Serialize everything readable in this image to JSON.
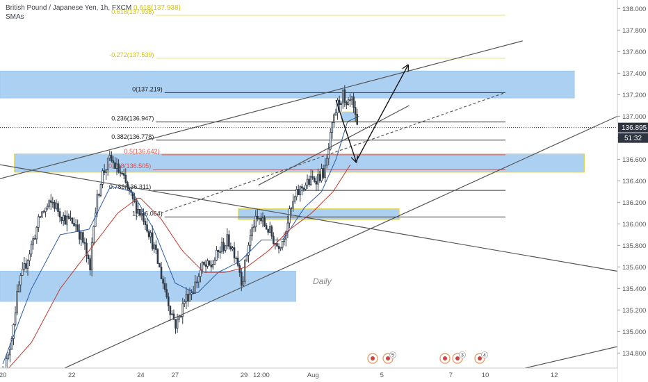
{
  "header": {
    "symbol_title": "British Pound / Japanese Yen, 1h, FXCM",
    "indicator_label": "SMAs",
    "top_fib_label": "0.618(137.938)"
  },
  "annotation_text": "Daily",
  "price_panel": {
    "last_price": "136.895",
    "countdown": "51:32"
  },
  "colors": {
    "bull_candle": "#2e3a48",
    "bear_candle": "#2e3a48",
    "sma_fast": "#2a5aa8",
    "sma_slow": "#c0392b",
    "zone_fill": "#9cc8f0",
    "zone_border_yellow": "#e2d64a",
    "trendline": "#555555",
    "fib_line": "#333333",
    "fib_top_line": "#e8e070",
    "fib_red": "#e05050",
    "axis_text": "#555555"
  },
  "events": [
    {
      "icon": "flag-uk-icon",
      "badge": ""
    },
    {
      "icon": "flag-uk-icon",
      "badge": "5"
    },
    {
      "icon": "flag-uk-icon",
      "badge": ""
    },
    {
      "icon": "flag-uk-icon",
      "badge": "3"
    },
    {
      "icon": "flag-uk-icon",
      "badge": "4"
    }
  ],
  "chart_data": {
    "type": "candlestick",
    "title": "British Pound / Japanese Yen, 1h, FXCM",
    "xlabel": "",
    "ylabel": "",
    "ylim": [
      134.66,
      138.08
    ],
    "x_ticks": [
      {
        "label": "20",
        "t": 0
      },
      {
        "label": "22",
        "t": 48
      },
      {
        "label": "24",
        "t": 96
      },
      {
        "label": "27",
        "t": 120
      },
      {
        "label": "29",
        "t": 168
      },
      {
        "label": "12:00",
        "t": 180
      },
      {
        "label": "Aug",
        "t": 216
      },
      {
        "label": "5",
        "t": 264
      },
      {
        "label": "7",
        "t": 312
      },
      {
        "label": "10",
        "t": 336
      },
      {
        "label": "12",
        "t": 384
      }
    ],
    "y_ticks": [
      134.8,
      135.0,
      135.2,
      135.4,
      135.6,
      135.8,
      136.0,
      136.2,
      136.4,
      136.6,
      136.8,
      137.0,
      137.2,
      137.4,
      137.6,
      137.8,
      138.0
    ],
    "candle_count": 200,
    "keypoints": [
      [
        0,
        134.62
      ],
      [
        5,
        134.75
      ],
      [
        12,
        135.4
      ],
      [
        20,
        135.75
      ],
      [
        28,
        136.1
      ],
      [
        36,
        136.2
      ],
      [
        44,
        136.05
      ],
      [
        52,
        136.0
      ],
      [
        58,
        135.8
      ],
      [
        62,
        135.55
      ],
      [
        64,
        136.0
      ],
      [
        70,
        136.45
      ],
      [
        76,
        136.6
      ],
      [
        84,
        136.45
      ],
      [
        92,
        136.2
      ],
      [
        100,
        136.05
      ],
      [
        106,
        135.8
      ],
      [
        112,
        135.5
      ],
      [
        118,
        135.2
      ],
      [
        122,
        135.05
      ],
      [
        128,
        135.3
      ],
      [
        134,
        135.4
      ],
      [
        140,
        135.6
      ],
      [
        146,
        135.6
      ],
      [
        152,
        135.75
      ],
      [
        158,
        135.85
      ],
      [
        164,
        135.7
      ],
      [
        168,
        135.45
      ],
      [
        172,
        135.8
      ],
      [
        176,
        136.0
      ],
      [
        180,
        136.05
      ],
      [
        186,
        135.95
      ],
      [
        192,
        135.8
      ],
      [
        196,
        135.85
      ],
      [
        200,
        136.05
      ],
      [
        205,
        136.25
      ],
      [
        210,
        136.35
      ],
      [
        216,
        136.4
      ],
      [
        222,
        136.45
      ],
      [
        226,
        136.5
      ],
      [
        230,
        136.85
      ],
      [
        234,
        137.1
      ],
      [
        238,
        137.2
      ],
      [
        240,
        137.05
      ],
      [
        244,
        137.15
      ],
      [
        248,
        136.88
      ]
    ],
    "sma_fast": [
      [
        0,
        134.7
      ],
      [
        20,
        135.4
      ],
      [
        40,
        135.9
      ],
      [
        60,
        135.95
      ],
      [
        75,
        136.35
      ],
      [
        90,
        136.3
      ],
      [
        105,
        135.95
      ],
      [
        120,
        135.45
      ],
      [
        135,
        135.35
      ],
      [
        150,
        135.55
      ],
      [
        165,
        135.65
      ],
      [
        180,
        135.85
      ],
      [
        195,
        135.85
      ],
      [
        210,
        136.15
      ],
      [
        222,
        136.3
      ],
      [
        232,
        136.6
      ],
      [
        240,
        136.95
      ],
      [
        248,
        137.0
      ]
    ],
    "sma_slow": [
      [
        0,
        134.6
      ],
      [
        20,
        134.9
      ],
      [
        40,
        135.4
      ],
      [
        60,
        135.75
      ],
      [
        80,
        136.1
      ],
      [
        95,
        136.25
      ],
      [
        110,
        136.05
      ],
      [
        125,
        135.75
      ],
      [
        140,
        135.55
      ],
      [
        155,
        135.55
      ],
      [
        170,
        135.6
      ],
      [
        185,
        135.75
      ],
      [
        200,
        135.95
      ],
      [
        215,
        136.1
      ],
      [
        230,
        136.3
      ],
      [
        242,
        136.55
      ]
    ],
    "zones": [
      {
        "t1": -2,
        "t2": 398,
        "y1": 137.42,
        "y2": 137.17,
        "border": "none"
      },
      {
        "t1": 8,
        "t2": 405,
        "y1": 136.65,
        "y2": 136.48,
        "border": "yellow"
      },
      {
        "t1": 164,
        "t2": 276,
        "y1": 136.14,
        "y2": 136.04,
        "border": "yellow"
      },
      {
        "t1": 236,
        "t2": 246,
        "y1": 137.04,
        "y2": 136.95,
        "border": "yellow"
      },
      {
        "t1": -2,
        "t2": 204,
        "y1": 135.56,
        "y2": 135.28,
        "border": "none"
      }
    ],
    "fib_levels": [
      {
        "label": "0.618(137.938)",
        "price": 137.938,
        "kind": "top",
        "t1": 80,
        "t2": 350
      },
      {
        "label": "-0.272(137.539)",
        "price": 137.539,
        "kind": "top",
        "t1": 80,
        "t2": 350
      },
      {
        "label": "0(137.219)",
        "price": 137.219,
        "kind": "black",
        "t1": 86,
        "t2": 350
      },
      {
        "label": "0.236(136.947)",
        "price": 136.947,
        "kind": "black",
        "t1": 80,
        "t2": 350
      },
      {
        "label": "0.382(136.778)",
        "price": 136.778,
        "kind": "black",
        "t1": 80,
        "t2": 350
      },
      {
        "label": "0.5(136.642)",
        "price": 136.642,
        "kind": "red",
        "t1": 84,
        "t2": 350
      },
      {
        "label": "0.618(136.505)",
        "price": 136.505,
        "kind": "red",
        "t1": 78,
        "t2": 350
      },
      {
        "label": "0.786(136.311)",
        "price": 136.311,
        "kind": "black",
        "t1": 78,
        "t2": 350
      },
      {
        "label": "1(136.064)",
        "price": 136.064,
        "kind": "black",
        "t1": 86,
        "t2": 350
      }
    ],
    "trendlines": [
      {
        "t1": -2,
        "p1": 136.42,
        "t2": 362,
        "p2": 137.7,
        "dash": false
      },
      {
        "t1": -2,
        "p1": 136.55,
        "t2": 428,
        "p2": 135.56,
        "dash": false
      },
      {
        "t1": 38,
        "p1": 134.63,
        "t2": 428,
        "p2": 137.0,
        "dash": false
      },
      {
        "t1": 178,
        "p1": 136.36,
        "t2": 283,
        "p2": 137.1,
        "dash": false
      },
      {
        "t1": 354,
        "p1": 134.63,
        "t2": 428,
        "p2": 134.86,
        "dash": false
      },
      {
        "t1": 110,
        "p1": 136.1,
        "t2": 350,
        "p2": 137.22,
        "dash": true
      }
    ],
    "projection_arrows": [
      {
        "from": [
          232,
          137.15
        ],
        "to": [
          246,
          136.58
        ]
      },
      {
        "from": [
          246,
          136.58
        ],
        "to": [
          282,
          137.47
        ]
      }
    ]
  }
}
